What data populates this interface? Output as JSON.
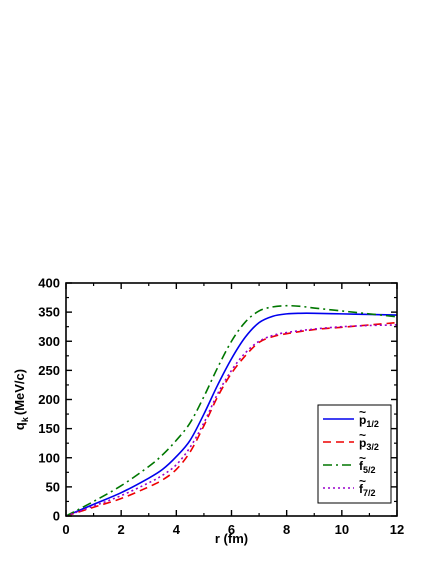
{
  "chart_data": {
    "type": "line",
    "xlabel": "r (fm)",
    "ylabel": "q",
    "ylabel_sub": "k",
    "ylabel_unit": "(MeV/c)",
    "xlim": [
      0,
      12
    ],
    "ylim": [
      0,
      400
    ],
    "x_ticks": [
      0,
      2,
      4,
      6,
      8,
      10,
      12
    ],
    "y_ticks": [
      0,
      50,
      100,
      150,
      200,
      250,
      300,
      350,
      400
    ],
    "grid": false,
    "legend_position": "lower-right",
    "series": [
      {
        "name": "p",
        "tilde": true,
        "sub": "1/2",
        "color": "#0000ee",
        "dash": "solid",
        "points": [
          [
            0,
            0
          ],
          [
            1,
            20
          ],
          [
            2,
            40
          ],
          [
            3,
            65
          ],
          [
            3.5,
            80
          ],
          [
            4,
            102
          ],
          [
            4.5,
            130
          ],
          [
            5,
            175
          ],
          [
            5.5,
            225
          ],
          [
            6,
            270
          ],
          [
            6.5,
            307
          ],
          [
            7,
            332
          ],
          [
            7.5,
            343
          ],
          [
            8,
            347
          ],
          [
            8.5,
            348
          ],
          [
            9,
            348
          ],
          [
            10,
            347
          ],
          [
            11,
            346
          ],
          [
            12,
            345
          ]
        ]
      },
      {
        "name": "p",
        "tilde": true,
        "sub": "3/2",
        "color": "#ee0000",
        "dash": "dashed",
        "points": [
          [
            0,
            0
          ],
          [
            1,
            15
          ],
          [
            2,
            30
          ],
          [
            3,
            50
          ],
          [
            3.5,
            62
          ],
          [
            4,
            80
          ],
          [
            4.5,
            110
          ],
          [
            5,
            155
          ],
          [
            5.5,
            205
          ],
          [
            6,
            245
          ],
          [
            6.5,
            275
          ],
          [
            7,
            298
          ],
          [
            7.5,
            308
          ],
          [
            8,
            313
          ],
          [
            9,
            320
          ],
          [
            10,
            324
          ],
          [
            11,
            328
          ],
          [
            12,
            332
          ]
        ]
      },
      {
        "name": "f",
        "tilde": true,
        "sub": "5/2",
        "color": "#007700",
        "dash": "dashdot",
        "points": [
          [
            0,
            0
          ],
          [
            1,
            25
          ],
          [
            2,
            52
          ],
          [
            3,
            85
          ],
          [
            3.5,
            105
          ],
          [
            4,
            130
          ],
          [
            4.5,
            160
          ],
          [
            5,
            205
          ],
          [
            5.5,
            255
          ],
          [
            6,
            300
          ],
          [
            6.5,
            333
          ],
          [
            7,
            352
          ],
          [
            7.5,
            359
          ],
          [
            8,
            361
          ],
          [
            8.5,
            360
          ],
          [
            9,
            357
          ],
          [
            10,
            352
          ],
          [
            11,
            347
          ],
          [
            12,
            342
          ]
        ]
      },
      {
        "name": "f",
        "tilde": true,
        "sub": "7/2",
        "color": "#9900cc",
        "dash": "dotted",
        "points": [
          [
            0,
            0
          ],
          [
            1,
            17
          ],
          [
            2,
            35
          ],
          [
            3,
            57
          ],
          [
            3.5,
            70
          ],
          [
            4,
            88
          ],
          [
            4.5,
            118
          ],
          [
            5,
            160
          ],
          [
            5.5,
            210
          ],
          [
            6,
            250
          ],
          [
            6.5,
            280
          ],
          [
            7,
            300
          ],
          [
            7.5,
            310
          ],
          [
            8,
            315
          ],
          [
            9,
            321
          ],
          [
            10,
            325
          ],
          [
            11,
            327
          ],
          [
            12,
            328
          ]
        ]
      }
    ]
  }
}
